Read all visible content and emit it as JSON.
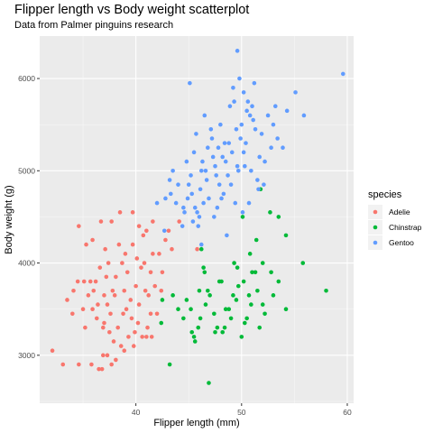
{
  "chart_data": {
    "type": "scatter",
    "title": "Flipper length vs Body weight scatterplot",
    "subtitle": "Data from Palmer pinguins research",
    "xlabel": "Flipper length (mm)",
    "ylabel": "Body weight (g)",
    "xlim": [
      30.9,
      60.6
    ],
    "ylim": [
      2480,
      6460
    ],
    "x_ticks": [
      40,
      50,
      60
    ],
    "y_ticks": [
      3000,
      4000,
      5000,
      6000
    ],
    "x_tick_labels": [
      "40",
      "50",
      "60"
    ],
    "y_tick_labels": [
      "3000",
      "4000",
      "5000",
      "6000"
    ],
    "grid": true,
    "legend": {
      "title": "species",
      "placement": "right"
    },
    "series": [
      {
        "name": "Adelie",
        "color": "#F8766D",
        "points": [
          [
            32.1,
            3050
          ],
          [
            33.1,
            2900
          ],
          [
            34.6,
            2900
          ],
          [
            35.8,
            2900
          ],
          [
            36.5,
            2850
          ],
          [
            36.8,
            2850
          ],
          [
            37.7,
            2900
          ],
          [
            36.9,
            3000
          ],
          [
            37.3,
            3000
          ],
          [
            38.1,
            2950
          ],
          [
            37.9,
            3150
          ],
          [
            38.6,
            3100
          ],
          [
            39.3,
            3200
          ],
          [
            40.6,
            3200
          ],
          [
            41.0,
            3200
          ],
          [
            41.5,
            3200
          ],
          [
            39.6,
            3400
          ],
          [
            40.2,
            3350
          ],
          [
            41.1,
            3300
          ],
          [
            34.0,
            3450
          ],
          [
            35.0,
            3500
          ],
          [
            35.9,
            3500
          ],
          [
            36.4,
            3550
          ],
          [
            37.6,
            3450
          ],
          [
            38.8,
            3450
          ],
          [
            40.3,
            3550
          ],
          [
            41.4,
            3450
          ],
          [
            33.5,
            3600
          ],
          [
            34.1,
            3700
          ],
          [
            35.5,
            3650
          ],
          [
            36.0,
            3700
          ],
          [
            37.0,
            3650
          ],
          [
            37.8,
            3700
          ],
          [
            38.9,
            3700
          ],
          [
            39.5,
            3600
          ],
          [
            40.0,
            3750
          ],
          [
            40.9,
            3700
          ],
          [
            41.8,
            3750
          ],
          [
            34.5,
            3800
          ],
          [
            35.1,
            3800
          ],
          [
            35.7,
            3800
          ],
          [
            36.2,
            3800
          ],
          [
            37.2,
            3850
          ],
          [
            38.1,
            3850
          ],
          [
            39.2,
            3900
          ],
          [
            40.5,
            3950
          ],
          [
            41.4,
            3900
          ],
          [
            36.6,
            3950
          ],
          [
            37.4,
            4000
          ],
          [
            38.7,
            4000
          ],
          [
            39.0,
            4100
          ],
          [
            40.1,
            4050
          ],
          [
            40.8,
            4000
          ],
          [
            41.6,
            4100
          ],
          [
            42.2,
            4100
          ],
          [
            35.3,
            4200
          ],
          [
            37.1,
            4150
          ],
          [
            38.4,
            4200
          ],
          [
            39.7,
            4200
          ],
          [
            40.7,
            4300
          ],
          [
            41.0,
            4350
          ],
          [
            42.8,
            4250
          ],
          [
            43.1,
            4350
          ],
          [
            34.6,
            4400
          ],
          [
            36.7,
            4450
          ],
          [
            37.7,
            4450
          ],
          [
            38.5,
            4550
          ],
          [
            39.7,
            4550
          ],
          [
            41.6,
            4450
          ],
          [
            44.1,
            4450
          ],
          [
            45.8,
            4150
          ],
          [
            35.9,
            4250
          ],
          [
            36.3,
            3400
          ],
          [
            37.0,
            3350
          ],
          [
            37.5,
            3250
          ],
          [
            38.3,
            3300
          ],
          [
            39.9,
            3250
          ],
          [
            42.0,
            3450
          ],
          [
            42.4,
            3700
          ],
          [
            36.9,
            3300
          ],
          [
            38.9,
            3050
          ],
          [
            39.8,
            3100
          ],
          [
            39.1,
            3500
          ],
          [
            41.2,
            3650
          ],
          [
            42.5,
            3900
          ],
          [
            43.4,
            4150
          ],
          [
            40.3,
            4400
          ],
          [
            35.2,
            3300
          ],
          [
            37.3,
            3550
          ],
          [
            38.0,
            3650
          ]
        ]
      },
      {
        "name": "Chinstrap",
        "color": "#00BA38",
        "points": [
          [
            42.4,
            3350
          ],
          [
            42.5,
            3600
          ],
          [
            43.2,
            2900
          ],
          [
            44.8,
            3600
          ],
          [
            45.3,
            3250
          ],
          [
            45.9,
            3300
          ],
          [
            46.1,
            3400
          ],
          [
            46.6,
            3550
          ],
          [
            46.9,
            2700
          ],
          [
            47.4,
            3450
          ],
          [
            47.7,
            3300
          ],
          [
            48.1,
            3800
          ],
          [
            48.5,
            3500
          ],
          [
            49.0,
            3400
          ],
          [
            49.2,
            3650
          ],
          [
            49.7,
            3750
          ],
          [
            50.2,
            3800
          ],
          [
            50.5,
            3400
          ],
          [
            50.7,
            3650
          ],
          [
            51.3,
            3900
          ],
          [
            51.5,
            3700
          ],
          [
            52.0,
            3550
          ],
          [
            52.2,
            3450
          ],
          [
            52.8,
            3900
          ],
          [
            53.5,
            3800
          ],
          [
            54.2,
            3500
          ],
          [
            55.8,
            4000
          ],
          [
            58.0,
            3700
          ],
          [
            46.4,
            3950
          ],
          [
            47.0,
            3650
          ],
          [
            50.8,
            4100
          ],
          [
            51.4,
            4250
          ],
          [
            52.7,
            4550
          ],
          [
            53.5,
            4500
          ],
          [
            54.2,
            4300
          ],
          [
            45.2,
            3500
          ],
          [
            46.0,
            3700
          ],
          [
            48.4,
            3300
          ],
          [
            49.5,
            3600
          ],
          [
            50.1,
            4500
          ],
          [
            51.8,
            4800
          ],
          [
            45.6,
            3150
          ],
          [
            46.2,
            4150
          ],
          [
            47.5,
            3250
          ],
          [
            48.8,
            3500
          ],
          [
            50.3,
            3350
          ],
          [
            51.0,
            3900
          ],
          [
            52.0,
            4000
          ],
          [
            49.6,
            3950
          ],
          [
            50.9,
            3550
          ],
          [
            43.5,
            3650
          ],
          [
            44.5,
            3400
          ],
          [
            45.5,
            3200
          ],
          [
            46.8,
            3700
          ],
          [
            48.2,
            3250
          ],
          [
            49.3,
            4000
          ],
          [
            47.9,
            3800
          ],
          [
            46.5,
            3900
          ],
          [
            50.0,
            3200
          ],
          [
            51.7,
            3300
          ],
          [
            53.0,
            3650
          ],
          [
            44.0,
            3500
          ]
        ]
      },
      {
        "name": "Gentoo",
        "color": "#619CFF",
        "points": [
          [
            42.0,
            4650
          ],
          [
            42.8,
            4700
          ],
          [
            43.3,
            4750
          ],
          [
            42.7,
            4350
          ],
          [
            43.2,
            4900
          ],
          [
            43.5,
            5000
          ],
          [
            44.0,
            4850
          ],
          [
            44.5,
            4600
          ],
          [
            44.9,
            4700
          ],
          [
            45.2,
            4950
          ],
          [
            45.5,
            5200
          ],
          [
            45.4,
            4450
          ],
          [
            45.8,
            4550
          ],
          [
            46.1,
            4800
          ],
          [
            46.3,
            5100
          ],
          [
            46.6,
            5000
          ],
          [
            46.8,
            5250
          ],
          [
            46.9,
            4700
          ],
          [
            47.2,
            5350
          ],
          [
            47.5,
            5050
          ],
          [
            47.7,
            4600
          ],
          [
            48.0,
            5500
          ],
          [
            48.4,
            5300
          ],
          [
            48.7,
            4950
          ],
          [
            48.9,
            5700
          ],
          [
            49.1,
            5200
          ],
          [
            49.3,
            5750
          ],
          [
            49.6,
            5050
          ],
          [
            49.8,
            6000
          ],
          [
            50.0,
            5500
          ],
          [
            50.2,
            5850
          ],
          [
            50.4,
            5300
          ],
          [
            50.5,
            5650
          ],
          [
            50.8,
            5600
          ],
          [
            51.1,
            5550
          ],
          [
            51.3,
            5450
          ],
          [
            51.5,
            4900
          ],
          [
            51.9,
            5400
          ],
          [
            52.2,
            5100
          ],
          [
            52.5,
            5600
          ],
          [
            53.0,
            5500
          ],
          [
            53.4,
            5350
          ],
          [
            53.9,
            5250
          ],
          [
            54.3,
            5650
          ],
          [
            55.1,
            5850
          ],
          [
            55.9,
            5600
          ],
          [
            59.6,
            6050
          ],
          [
            49.6,
            6300
          ],
          [
            45.1,
            5950
          ],
          [
            44.4,
            4400
          ],
          [
            45.9,
            4400
          ],
          [
            46.0,
            4500
          ],
          [
            46.2,
            4200
          ],
          [
            47.4,
            4500
          ],
          [
            47.9,
            4850
          ],
          [
            48.3,
            4750
          ],
          [
            48.6,
            4300
          ],
          [
            49.0,
            4850
          ],
          [
            49.4,
            4650
          ],
          [
            50.7,
            4650
          ],
          [
            51.6,
            4800
          ],
          [
            50.9,
            5000
          ],
          [
            52.1,
            4850
          ],
          [
            50.2,
            5200
          ],
          [
            49.9,
            5350
          ],
          [
            48.2,
            5150
          ],
          [
            47.1,
            5450
          ],
          [
            46.5,
            5600
          ],
          [
            45.7,
            5400
          ],
          [
            44.8,
            5100
          ],
          [
            51.2,
            5950
          ],
          [
            50.6,
            5750
          ],
          [
            49.2,
            5900
          ],
          [
            48.8,
            5300
          ],
          [
            47.6,
            4950
          ],
          [
            46.4,
            4650
          ],
          [
            45.3,
            4750
          ],
          [
            44.6,
            4550
          ],
          [
            43.8,
            4650
          ],
          [
            52.8,
            5250
          ],
          [
            51.0,
            5700
          ],
          [
            47.8,
            5250
          ],
          [
            46.7,
            4900
          ],
          [
            45.6,
            4600
          ],
          [
            48.5,
            5100
          ],
          [
            49.5,
            5450
          ],
          [
            50.3,
            5050
          ],
          [
            53.2,
            5700
          ],
          [
            51.7,
            5150
          ],
          [
            50.1,
            4550
          ],
          [
            46.2,
            5000
          ],
          [
            47.3,
            5150
          ],
          [
            48.1,
            4700
          ],
          [
            49.7,
            5000
          ],
          [
            45.0,
            4850
          ]
        ]
      }
    ]
  }
}
